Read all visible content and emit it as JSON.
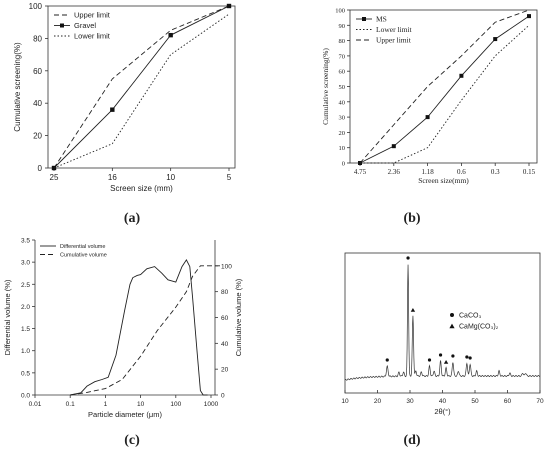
{
  "panels": [
    {
      "caption": "(a)"
    },
    {
      "caption": "(b)"
    },
    {
      "caption": "(c)"
    },
    {
      "caption": "(d)"
    }
  ],
  "chart_data": [
    {
      "type": "line",
      "categories": [
        "25",
        "16",
        "10",
        "5"
      ],
      "xlabel": "Screen size (mm)",
      "ylabel": "Cumulative screening(%)",
      "ylim": [
        0,
        100
      ],
      "yticks": [
        "0",
        "20",
        "40",
        "60",
        "80",
        "100"
      ],
      "legend": "top-left",
      "series": [
        {
          "name": "Upper limit",
          "style": "dashed",
          "values": [
            0,
            55,
            85,
            100
          ]
        },
        {
          "name": "Gravel",
          "style": "solid-square",
          "values": [
            0,
            36,
            82,
            100
          ]
        },
        {
          "name": "Lower limit",
          "style": "dotted",
          "values": [
            0,
            15,
            70,
            95
          ]
        }
      ]
    },
    {
      "type": "line",
      "categories": [
        "4.75",
        "2.36",
        "1.18",
        "0.6",
        "0.3",
        "0.15"
      ],
      "xlabel": "Screen size(mm)",
      "ylabel": "Cumulative screening(%)",
      "ylim": [
        0,
        100
      ],
      "yticks": [
        "0",
        "10",
        "20",
        "30",
        "40",
        "50",
        "60",
        "70",
        "80",
        "90",
        "100"
      ],
      "legend": "top-left",
      "series": [
        {
          "name": "MS",
          "style": "solid-square",
          "values": [
            0,
            11,
            30,
            57,
            81,
            96
          ]
        },
        {
          "name": "Lower limit",
          "style": "dotted",
          "values": [
            0,
            0,
            10,
            41,
            70,
            90
          ]
        },
        {
          "name": "Upper limit",
          "style": "dashed",
          "values": [
            0,
            25,
            50,
            70,
            92,
            100
          ]
        }
      ]
    },
    {
      "type": "line",
      "xscale": "log",
      "xlabel": "Particle diameter (μm)",
      "ylabel": "Differential volume (%)",
      "y2label": "Cumulative volume (%)",
      "xticks": [
        "0.01",
        "0.1",
        "1",
        "10",
        "100",
        "1000"
      ],
      "yticks": [
        "0.0",
        "0.5",
        "1.0",
        "1.5",
        "2.0",
        "2.5",
        "3.0",
        "3.5"
      ],
      "y2ticks": [
        "0",
        "20",
        "40",
        "60",
        "80",
        "100"
      ],
      "ylim": [
        0,
        3.5
      ],
      "y2lim": [
        0,
        120
      ],
      "legend": "top-left",
      "series": [
        {
          "name": "Differential volume",
          "style": "solid",
          "axis": "left",
          "x": [
            0.1,
            0.2,
            0.3,
            0.5,
            0.8,
            1.2,
            2,
            3.5,
            5,
            6,
            8,
            10,
            15,
            25,
            40,
            60,
            100,
            150,
            200,
            250,
            300,
            400,
            500,
            600,
            800
          ],
          "y": [
            0.0,
            0.05,
            0.2,
            0.3,
            0.35,
            0.4,
            0.9,
            1.9,
            2.5,
            2.65,
            2.7,
            2.72,
            2.85,
            2.9,
            2.75,
            2.6,
            2.55,
            2.9,
            3.05,
            2.9,
            2.2,
            1.0,
            0.1,
            0.0,
            0.0
          ]
        },
        {
          "name": "Cumulative volume",
          "style": "dashed",
          "axis": "right",
          "x": [
            0.1,
            0.3,
            1,
            3,
            10,
            30,
            100,
            200,
            300,
            500,
            800,
            1000,
            2000
          ],
          "y": [
            0,
            2,
            5,
            12,
            30,
            50,
            68,
            80,
            92,
            100,
            100,
            100,
            100
          ]
        }
      ]
    },
    {
      "type": "line",
      "xlabel": "2θ(°)",
      "xlim": [
        10,
        70
      ],
      "xticks": [
        "10",
        "20",
        "30",
        "40",
        "50",
        "60",
        "70"
      ],
      "legend": "top-right",
      "series": [
        {
          "name": "CaCO₃",
          "marker": "circle",
          "peaks": [
            23.0,
            29.4,
            36.0,
            39.4,
            43.2,
            47.5,
            48.5
          ]
        },
        {
          "name": "CaMg(CO₃)₂",
          "marker": "triangle",
          "peaks": [
            30.9,
            41.1
          ]
        }
      ]
    }
  ]
}
